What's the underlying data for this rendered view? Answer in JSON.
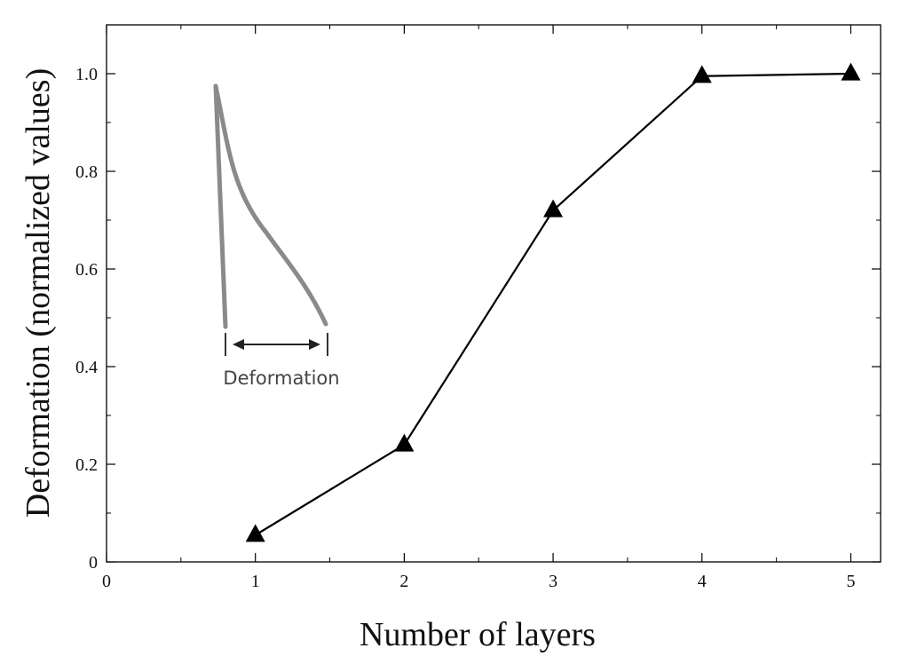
{
  "chart_data": {
    "type": "line",
    "xlabel": "Number of layers",
    "ylabel": "Deformation (normalized values)",
    "xlim": [
      0,
      5.2
    ],
    "ylim": [
      0,
      1.1
    ],
    "x_ticks": [
      0,
      1,
      2,
      3,
      4,
      5
    ],
    "y_ticks": [
      0,
      0.2,
      0.4,
      0.6,
      0.8,
      1.0
    ],
    "x_tick_labels": [
      "0",
      "1",
      "2",
      "3",
      "4",
      "5"
    ],
    "y_tick_labels": [
      "0",
      "0.2",
      "0.4",
      "0.6",
      "0.8",
      "1.0"
    ],
    "grid": false,
    "marker": "triangle",
    "line_color": "#000000",
    "series": [
      {
        "x": [
          1,
          2,
          3,
          4,
          5
        ],
        "values": [
          0.055,
          0.24,
          0.72,
          0.995,
          1.0
        ]
      }
    ],
    "inset": {
      "label": "Deformation",
      "color": "#808080"
    }
  }
}
